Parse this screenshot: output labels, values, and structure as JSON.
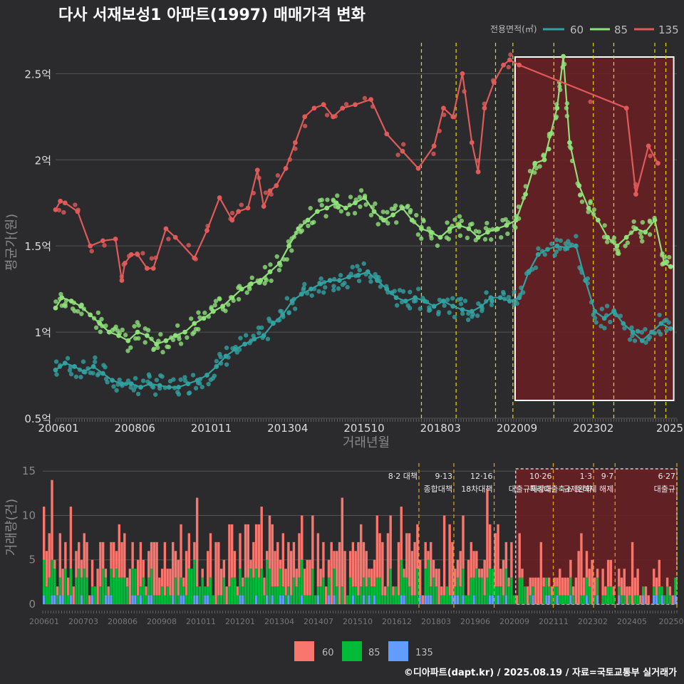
{
  "title": "다사 서재보성1 아파트(1997) 매매가격 변화",
  "footer": "©디아파트(dapt.kr) / 2025.08.19 / 자료=국토교통부 실거래가",
  "colors": {
    "background": "#2b2b2d",
    "s60": "#33a0a0",
    "s85": "#8fe07a",
    "s135": "#e05a5a",
    "bar60": "#f8766d",
    "bar85": "#00ba38",
    "bar135": "#619cff",
    "policy_line": "#e6d800",
    "policy_line_bottom": "#e8a317",
    "highlight": "#6b1f22"
  },
  "chart_data": [
    {
      "type": "line",
      "title": "다사 서재보성1 아파트(1997) 매매가격 변화",
      "xlabel": "거래년월",
      "ylabel": "평균가(원)",
      "legend_title": "전용면적(㎡)",
      "legend_position": "top-right",
      "x_ticks": [
        "200601",
        "200806",
        "201011",
        "201304",
        "201510",
        "201803",
        "202009",
        "202302",
        "2025"
      ],
      "y_ticks": [
        {
          "value": 0.5,
          "label": "0.5억"
        },
        {
          "value": 1.0,
          "label": "1억"
        },
        {
          "value": 1.5,
          "label": "1.5억"
        },
        {
          "value": 2.0,
          "label": "2억"
        },
        {
          "value": 2.5,
          "label": "2.5억"
        }
      ],
      "ylim": [
        0.5,
        2.7
      ],
      "xlim": [
        2006.0,
        2025.7
      ],
      "y_unit": "억",
      "policy_dates": [
        2017.6,
        2018.7,
        2019.95,
        2020.5,
        2021.8,
        2023.05,
        2023.7,
        2025.0,
        2025.35
      ],
      "highlight_range": [
        2020.57,
        2025.6
      ],
      "series": [
        {
          "name": "60",
          "points": [
            [
              2006.0,
              0.78
            ],
            [
              2006.3,
              0.82
            ],
            [
              2006.6,
              0.8
            ],
            [
              2006.9,
              0.77
            ],
            [
              2007.2,
              0.8
            ],
            [
              2007.5,
              0.76
            ],
            [
              2007.8,
              0.72
            ],
            [
              2008.1,
              0.7
            ],
            [
              2008.4,
              0.7
            ],
            [
              2008.7,
              0.68
            ],
            [
              2009.0,
              0.7
            ],
            [
              2009.3,
              0.69
            ],
            [
              2009.6,
              0.68
            ],
            [
              2009.9,
              0.68
            ],
            [
              2010.2,
              0.7
            ],
            [
              2010.5,
              0.72
            ],
            [
              2010.8,
              0.75
            ],
            [
              2011.1,
              0.8
            ],
            [
              2011.4,
              0.86
            ],
            [
              2011.7,
              0.9
            ],
            [
              2012.0,
              0.93
            ],
            [
              2012.3,
              0.96
            ],
            [
              2012.6,
              0.98
            ],
            [
              2012.9,
              1.05
            ],
            [
              2013.2,
              1.1
            ],
            [
              2013.5,
              1.18
            ],
            [
              2013.8,
              1.22
            ],
            [
              2014.1,
              1.25
            ],
            [
              2014.4,
              1.28
            ],
            [
              2014.7,
              1.3
            ],
            [
              2015.0,
              1.3
            ],
            [
              2015.3,
              1.32
            ],
            [
              2015.6,
              1.33
            ],
            [
              2015.9,
              1.35
            ],
            [
              2016.2,
              1.3
            ],
            [
              2016.5,
              1.25
            ],
            [
              2016.8,
              1.2
            ],
            [
              2017.1,
              1.18
            ],
            [
              2017.4,
              1.2
            ],
            [
              2017.7,
              1.18
            ],
            [
              2018.0,
              1.15
            ],
            [
              2018.3,
              1.18
            ],
            [
              2018.6,
              1.15
            ],
            [
              2018.9,
              1.13
            ],
            [
              2019.2,
              1.12
            ],
            [
              2019.5,
              1.15
            ],
            [
              2019.8,
              1.2
            ],
            [
              2020.1,
              1.2
            ],
            [
              2020.4,
              1.18
            ],
            [
              2020.7,
              1.2
            ],
            [
              2021.0,
              1.35
            ],
            [
              2021.3,
              1.45
            ],
            [
              2021.6,
              1.48
            ],
            [
              2021.9,
              1.5
            ],
            [
              2022.2,
              1.49
            ],
            [
              2022.5,
              1.5
            ],
            [
              2022.8,
              1.3
            ],
            [
              2023.1,
              1.12
            ],
            [
              2023.4,
              1.08
            ],
            [
              2023.7,
              1.12
            ],
            [
              2024.0,
              1.05
            ],
            [
              2024.3,
              1.0
            ],
            [
              2024.6,
              0.95
            ],
            [
              2024.9,
              1.0
            ],
            [
              2025.2,
              1.05
            ],
            [
              2025.5,
              1.02
            ]
          ]
        },
        {
          "name": "85",
          "points": [
            [
              2006.0,
              1.14
            ],
            [
              2006.2,
              1.2
            ],
            [
              2006.5,
              1.18
            ],
            [
              2006.8,
              1.15
            ],
            [
              2007.1,
              1.1
            ],
            [
              2007.4,
              1.05
            ],
            [
              2007.7,
              1.0
            ],
            [
              2008.0,
              0.98
            ],
            [
              2008.3,
              0.95
            ],
            [
              2008.6,
              1.0
            ],
            [
              2008.9,
              0.98
            ],
            [
              2009.2,
              0.93
            ],
            [
              2009.5,
              0.95
            ],
            [
              2009.8,
              0.98
            ],
            [
              2010.1,
              1.0
            ],
            [
              2010.4,
              1.05
            ],
            [
              2010.7,
              1.08
            ],
            [
              2011.0,
              1.12
            ],
            [
              2011.3,
              1.15
            ],
            [
              2011.6,
              1.2
            ],
            [
              2011.9,
              1.25
            ],
            [
              2012.2,
              1.28
            ],
            [
              2012.5,
              1.3
            ],
            [
              2012.8,
              1.35
            ],
            [
              2013.1,
              1.4
            ],
            [
              2013.4,
              1.5
            ],
            [
              2013.7,
              1.6
            ],
            [
              2014.0,
              1.65
            ],
            [
              2014.3,
              1.7
            ],
            [
              2014.6,
              1.72
            ],
            [
              2014.9,
              1.75
            ],
            [
              2015.2,
              1.72
            ],
            [
              2015.5,
              1.75
            ],
            [
              2015.8,
              1.78
            ],
            [
              2016.1,
              1.7
            ],
            [
              2016.4,
              1.65
            ],
            [
              2016.7,
              1.68
            ],
            [
              2017.0,
              1.72
            ],
            [
              2017.3,
              1.65
            ],
            [
              2017.6,
              1.6
            ],
            [
              2017.9,
              1.58
            ],
            [
              2018.2,
              1.55
            ],
            [
              2018.5,
              1.6
            ],
            [
              2018.8,
              1.62
            ],
            [
              2019.1,
              1.6
            ],
            [
              2019.4,
              1.55
            ],
            [
              2019.7,
              1.58
            ],
            [
              2020.0,
              1.6
            ],
            [
              2020.3,
              1.62
            ],
            [
              2020.6,
              1.65
            ],
            [
              2020.9,
              1.8
            ],
            [
              2021.2,
              1.98
            ],
            [
              2021.5,
              2.0
            ],
            [
              2021.7,
              2.15
            ],
            [
              2021.9,
              2.3
            ],
            [
              2022.1,
              2.6
            ],
            [
              2022.3,
              2.1
            ],
            [
              2022.6,
              1.85
            ],
            [
              2022.9,
              1.72
            ],
            [
              2023.2,
              1.65
            ],
            [
              2023.5,
              1.55
            ],
            [
              2023.8,
              1.5
            ],
            [
              2024.1,
              1.55
            ],
            [
              2024.4,
              1.6
            ],
            [
              2024.7,
              1.58
            ],
            [
              2025.0,
              1.65
            ],
            [
              2025.3,
              1.4
            ],
            [
              2025.5,
              1.38
            ]
          ]
        },
        {
          "name": "135",
          "points": [
            [
              2006.0,
              1.71
            ],
            [
              2006.15,
              1.76
            ],
            [
              2006.3,
              1.75
            ],
            [
              2006.7,
              1.7
            ],
            [
              2007.1,
              1.5
            ],
            [
              2007.5,
              1.53
            ],
            [
              2007.9,
              1.54
            ],
            [
              2008.1,
              1.3
            ],
            [
              2008.2,
              1.4
            ],
            [
              2008.4,
              1.45
            ],
            [
              2008.6,
              1.45
            ],
            [
              2008.9,
              1.37
            ],
            [
              2009.1,
              1.37
            ],
            [
              2009.5,
              1.6
            ],
            [
              2009.8,
              1.55
            ],
            [
              2010.4,
              1.43
            ],
            [
              2010.8,
              1.59
            ],
            [
              2011.2,
              1.78
            ],
            [
              2011.6,
              1.65
            ],
            [
              2011.8,
              1.7
            ],
            [
              2012.1,
              1.72
            ],
            [
              2012.4,
              1.94
            ],
            [
              2012.6,
              1.73
            ],
            [
              2012.8,
              1.82
            ],
            [
              2013.0,
              1.85
            ],
            [
              2013.3,
              1.95
            ],
            [
              2013.6,
              2.1
            ],
            [
              2013.9,
              2.25
            ],
            [
              2014.2,
              2.3
            ],
            [
              2014.5,
              2.32
            ],
            [
              2014.8,
              2.25
            ],
            [
              2015.1,
              2.3
            ],
            [
              2015.5,
              2.32
            ],
            [
              2016.0,
              2.35
            ],
            [
              2016.5,
              2.15
            ],
            [
              2017.0,
              2.05
            ],
            [
              2017.5,
              1.95
            ],
            [
              2018.0,
              2.08
            ],
            [
              2018.3,
              2.3
            ],
            [
              2018.6,
              2.25
            ],
            [
              2018.9,
              2.5
            ],
            [
              2019.2,
              2.1
            ],
            [
              2019.4,
              1.93
            ],
            [
              2019.6,
              2.3
            ],
            [
              2019.9,
              2.45
            ],
            [
              2020.2,
              2.55
            ],
            [
              2020.4,
              2.58
            ],
            [
              2020.7,
              2.55
            ],
            [
              2024.1,
              2.3
            ],
            [
              2024.4,
              1.8
            ],
            [
              2024.8,
              2.08
            ],
            [
              2025.1,
              1.98
            ]
          ]
        }
      ]
    },
    {
      "type": "bar",
      "ylabel": "거래량(건)",
      "stacked": true,
      "y_ticks": [
        0,
        5,
        10,
        15
      ],
      "ylim": [
        0,
        15.5
      ],
      "x_ticks": [
        "200601",
        "200703",
        "200806",
        "200908",
        "201011",
        "201201",
        "201304",
        "201407",
        "201510",
        "201612",
        "201803",
        "201906",
        "202009",
        "202111",
        "202302",
        "202405",
        "20250"
      ],
      "legend": [
        "60",
        "85",
        "135"
      ],
      "legend_position": "bottom",
      "series_names": [
        "60",
        "85",
        "135"
      ],
      "annotations": [
        {
          "date": "8·2 대책",
          "x_index": 140
        },
        {
          "date": "9·13",
          "label": "종합대책",
          "x_index": 153
        },
        {
          "date": "12·16",
          "label": "18차대책",
          "x_index": 168
        },
        {
          "date": "10·26",
          "label": "대출규제강화",
          "x_index": 190
        },
        {
          "date": "1·3",
          "label": "규제완화",
          "x_index": 205
        },
        {
          "date": "9·7",
          "label": "특례대출축소 토허제 해제",
          "x_index": 213
        },
        {
          "date": "6·27",
          "label": "대출규",
          "x_index": 236
        }
      ]
    }
  ]
}
